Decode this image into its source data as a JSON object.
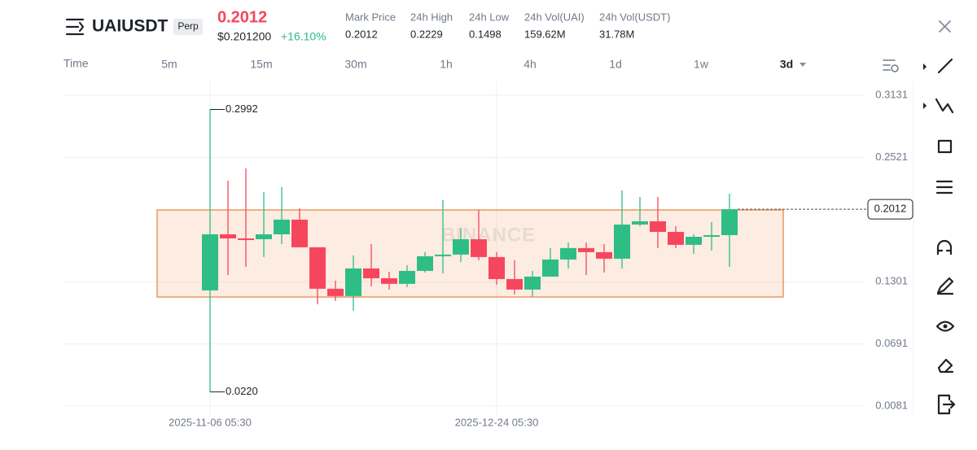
{
  "header": {
    "symbol": "UAIUSDT",
    "badge": "Perp",
    "price": "0.2012",
    "usd_price": "$0.201200",
    "change": "+16.10%",
    "stats": [
      {
        "label": "Mark Price",
        "value": "0.2012"
      },
      {
        "label": "24h High",
        "value": "0.2229"
      },
      {
        "label": "24h Low",
        "value": "0.1498"
      },
      {
        "label": "24h Vol(UAI)",
        "value": "159.62M"
      },
      {
        "label": "24h Vol(USDT)",
        "value": "31.78M"
      }
    ]
  },
  "timeframes": {
    "label": "Time",
    "options": [
      "5m",
      "15m",
      "30m",
      "1h",
      "4h",
      "1d",
      "1w",
      "3d"
    ]
  },
  "chart_data": {
    "type": "candlestick",
    "watermark": "BINANCE",
    "up_color": "#2ebd85",
    "down_color": "#f6465d",
    "x": [
      "2025-11-06 05:30",
      null,
      null,
      null,
      null,
      null,
      null,
      null,
      null,
      null,
      null,
      null,
      null,
      null,
      null,
      null,
      "2025-12-24 05:30",
      null,
      null,
      null,
      null,
      null,
      null,
      null,
      null,
      null,
      null,
      null,
      null,
      null
    ],
    "open": [
      0.1216,
      0.1766,
      0.1726,
      0.1718,
      0.1766,
      0.191,
      0.1639,
      0.1232,
      0.116,
      0.1431,
      0.1335,
      0.128,
      0.1407,
      0.1551,
      0.1567,
      0.1718,
      0.1543,
      0.1327,
      0.1224,
      0.1351,
      0.1519,
      0.1631,
      0.1591,
      0.1527,
      0.1862,
      0.1894,
      0.179,
      0.1663,
      0.1742,
      0.1758
    ],
    "high": [
      0.2992,
      0.2293,
      0.2413,
      0.2181,
      0.2229,
      0.2022,
      0.1639,
      0.1312,
      0.1559,
      0.167,
      0.1399,
      0.1463,
      0.1591,
      0.2102,
      0.183,
      0.2006,
      0.1591,
      0.1511,
      0.1407,
      0.1631,
      0.1686,
      0.1686,
      0.167,
      0.2197,
      0.2134,
      0.2134,
      0.1846,
      0.1766,
      0.1886,
      0.2165
    ],
    "low": [
      0.022,
      0.1367,
      0.1447,
      0.1543,
      0.167,
      0.1639,
      0.108,
      0.1112,
      0.1016,
      0.1256,
      0.1224,
      0.1248,
      0.1391,
      0.1383,
      0.1495,
      0.1511,
      0.1272,
      0.1176,
      0.1152,
      0.1351,
      0.1431,
      0.1367,
      0.1391,
      0.1431,
      0.1846,
      0.1631,
      0.1631,
      0.1575,
      0.1607,
      0.1447
    ],
    "close": [
      0.1766,
      0.1726,
      0.171,
      0.1766,
      0.191,
      0.1639,
      0.1232,
      0.116,
      0.1431,
      0.1335,
      0.128,
      0.1407,
      0.1551,
      0.1567,
      0.1718,
      0.1543,
      0.1327,
      0.1224,
      0.1351,
      0.1519,
      0.1631,
      0.1591,
      0.1527,
      0.1862,
      0.1894,
      0.179,
      0.1663,
      0.1742,
      0.1758,
      0.2012
    ],
    "annotations": [
      "0.2992",
      "0.0220"
    ],
    "ylim": [
      -0.0007,
      0.3267
    ],
    "yticks": [
      0.3131,
      0.2521,
      0.1301,
      0.0691,
      0.0081
    ],
    "grid": true
  }
}
